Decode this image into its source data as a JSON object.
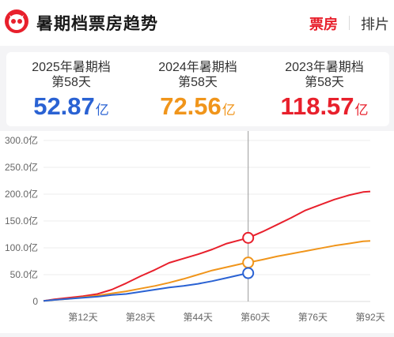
{
  "header": {
    "title": "暑期档票房趋势",
    "tabs": [
      {
        "label": "票房",
        "active": true
      },
      {
        "label": "排片",
        "active": false
      }
    ],
    "logo_icon": "cat-eye-logo",
    "accent_color": "#e8202c"
  },
  "summary": [
    {
      "year_label": "2025年暑期档",
      "day_label": "第58天",
      "value": "52.87",
      "unit": "亿",
      "color": "#2a62d3"
    },
    {
      "year_label": "2024年暑期档",
      "day_label": "第58天",
      "value": "72.56",
      "unit": "亿",
      "color": "#f0951b"
    },
    {
      "year_label": "2023年暑期档",
      "day_label": "第58天",
      "value": "118.57",
      "unit": "亿",
      "color": "#e8202c"
    }
  ],
  "chart_data": {
    "type": "line",
    "y_tick_labels": [
      "0",
      "50.0亿",
      "100.0亿",
      "150.0亿",
      "200.0亿",
      "250.0亿",
      "300.0亿"
    ],
    "y_ticks": [
      0,
      50,
      100,
      150,
      200,
      250,
      300
    ],
    "ylim": [
      0,
      300
    ],
    "x_tick_labels": [
      "第12天",
      "第28天",
      "第44天",
      "第60天",
      "第76天",
      "第92天"
    ],
    "x_ticks": [
      12,
      28,
      44,
      60,
      76,
      92
    ],
    "xlim": [
      1,
      92
    ],
    "cursor_day": 58,
    "grid": true,
    "series": [
      {
        "color": "#e8202c",
        "x": [
          1,
          4,
          8,
          12,
          16,
          20,
          24,
          28,
          32,
          36,
          40,
          44,
          48,
          52,
          56,
          58,
          62,
          66,
          70,
          74,
          78,
          82,
          86,
          90,
          92
        ],
        "y": [
          1,
          4,
          7,
          10,
          14,
          22,
          34,
          47,
          59,
          72,
          80,
          88,
          97,
          108,
          115,
          118.57,
          130,
          143,
          156,
          170,
          180,
          190,
          198,
          204,
          205
        ]
      },
      {
        "color": "#f0951b",
        "x": [
          1,
          4,
          8,
          12,
          16,
          20,
          24,
          28,
          32,
          36,
          40,
          44,
          48,
          52,
          56,
          58,
          62,
          66,
          70,
          74,
          78,
          82,
          86,
          90,
          92
        ],
        "y": [
          1,
          3,
          5,
          8,
          11,
          15,
          19,
          24,
          29,
          35,
          42,
          50,
          58,
          64,
          70,
          72.56,
          78,
          84,
          89,
          94,
          99,
          104,
          108,
          112,
          113
        ]
      },
      {
        "color": "#2a62d3",
        "x": [
          1,
          4,
          8,
          12,
          16,
          20,
          24,
          28,
          32,
          36,
          40,
          44,
          48,
          52,
          56,
          58
        ],
        "y": [
          1,
          3,
          5,
          7,
          9,
          12,
          14,
          18,
          22,
          26,
          29,
          33,
          38,
          44,
          50,
          52.87
        ]
      }
    ]
  }
}
